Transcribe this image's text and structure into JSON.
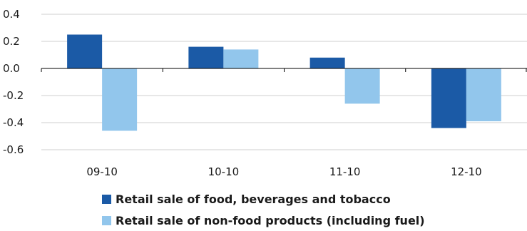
{
  "chart_data": {
    "type": "bar",
    "categories": [
      "09-10",
      "10-10",
      "11-10",
      "12-10"
    ],
    "series": [
      {
        "name": "Retail sale of food, beverages and tobacco",
        "color": "#1b5aa6",
        "values": [
          0.25,
          0.16,
          0.08,
          -0.44
        ]
      },
      {
        "name": "Retail sale of non-food products (including fuel)",
        "color": "#92c6ec",
        "values": [
          -0.46,
          0.14,
          -0.26,
          -0.39
        ]
      }
    ],
    "yticks": [
      "0.4",
      "0.2",
      "0.0",
      "-0.2",
      "-0.4",
      "-0.6"
    ],
    "ytick_values": [
      0.4,
      0.2,
      0.0,
      -0.2,
      -0.4,
      -0.6
    ],
    "ylim": [
      -0.6,
      0.4
    ],
    "grid": true,
    "legend_position": "bottom",
    "title": "",
    "xlabel": "",
    "ylabel": ""
  }
}
